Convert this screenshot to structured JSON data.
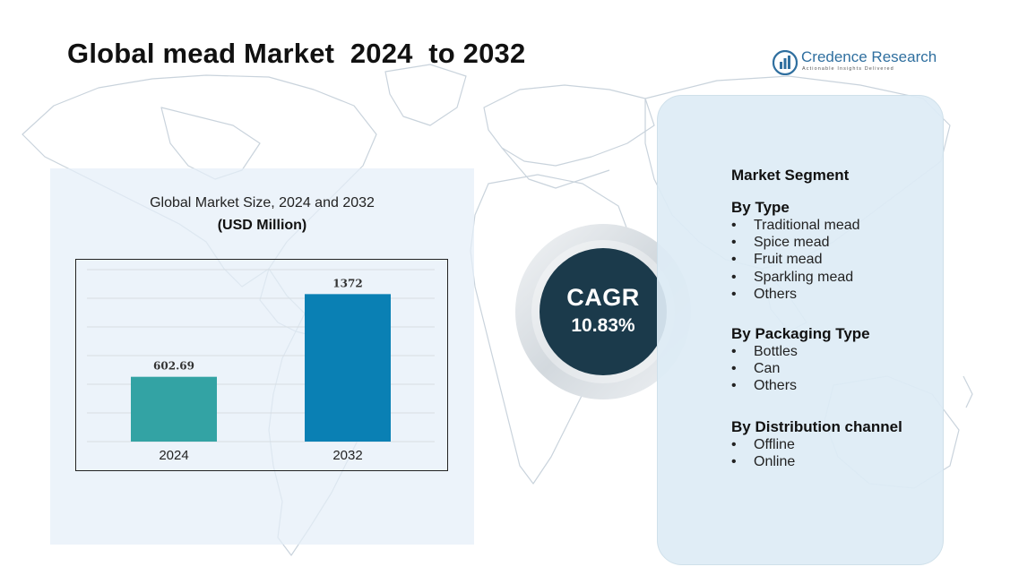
{
  "title": "Global mead Market  2024  to 2032",
  "logo": {
    "name": "Credence Research",
    "tagline": "Actionable Insights Delivered",
    "icon": "bar-chart-logo-icon"
  },
  "chart_data": {
    "type": "bar",
    "title": "Global Market Size, 2024 and 2032",
    "subtitle": "(USD Million)",
    "categories": [
      "2024",
      "2032"
    ],
    "values": [
      602.69,
      1372
    ],
    "value_labels": [
      "602.69",
      "1372"
    ],
    "ylim": [
      0,
      1600
    ],
    "grid": true,
    "colors": [
      "#33a3a4",
      "#0a80b4"
    ]
  },
  "cagr": {
    "label": "CAGR",
    "value": "10.83%"
  },
  "segments": {
    "heading": "Market Segment",
    "groups": [
      {
        "title": "By Type",
        "items": [
          "Traditional mead",
          "Spice mead",
          "Fruit mead",
          "Sparkling mead",
          "Others"
        ]
      },
      {
        "title": "By Packaging Type",
        "items": [
          "Bottles",
          "Can",
          "Others"
        ]
      },
      {
        "title": "By Distribution channel",
        "items": [
          "Offline",
          "Online"
        ]
      }
    ]
  },
  "colors": {
    "cagr_circle": "#1b3a4b",
    "panel_bg": "#e4eef8",
    "segment_bg": "#ddecf5"
  }
}
